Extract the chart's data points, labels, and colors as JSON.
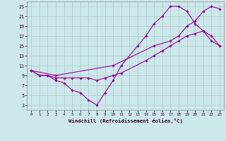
{
  "line1_x": [
    0,
    1,
    2,
    3,
    4,
    5,
    6,
    7,
    8,
    9,
    10,
    11,
    13,
    14,
    15,
    16,
    17,
    18,
    19,
    20,
    21,
    22,
    23
  ],
  "line1_y": [
    10,
    9,
    9,
    8,
    7.5,
    6,
    5.5,
    4,
    3,
    5.5,
    8,
    11,
    15,
    17,
    19.5,
    21,
    23,
    23,
    22,
    19.5,
    18,
    16,
    15
  ],
  "line2_x": [
    0,
    1,
    2,
    3,
    4,
    5,
    6,
    7,
    8,
    9,
    10,
    11,
    14,
    15,
    16,
    17,
    18,
    19,
    20,
    21,
    22,
    23
  ],
  "line2_y": [
    10,
    9,
    9,
    8.5,
    8.5,
    8.5,
    8.5,
    8.5,
    8,
    8.5,
    9,
    9.5,
    12,
    13,
    14,
    15,
    16,
    17,
    17.5,
    18,
    17,
    15
  ],
  "line3_x": [
    0,
    3,
    10,
    15,
    17,
    18,
    19,
    20,
    21,
    22,
    23
  ],
  "line3_y": [
    10,
    9,
    11,
    15,
    16,
    17,
    19,
    20,
    22,
    23,
    22.5
  ],
  "color": "#990099",
  "bg_color": "#cce8ea",
  "grid_color": "#aacccc",
  "xlabel": "Windchill (Refroidissement éolien,°C)",
  "xlim": [
    -0.5,
    23.5
  ],
  "ylim": [
    2,
    24
  ],
  "xticks": [
    0,
    1,
    2,
    3,
    4,
    5,
    6,
    7,
    8,
    9,
    10,
    11,
    12,
    13,
    14,
    15,
    16,
    17,
    18,
    19,
    20,
    21,
    22,
    23
  ],
  "yticks": [
    3,
    5,
    7,
    9,
    11,
    13,
    15,
    17,
    19,
    21,
    23
  ]
}
